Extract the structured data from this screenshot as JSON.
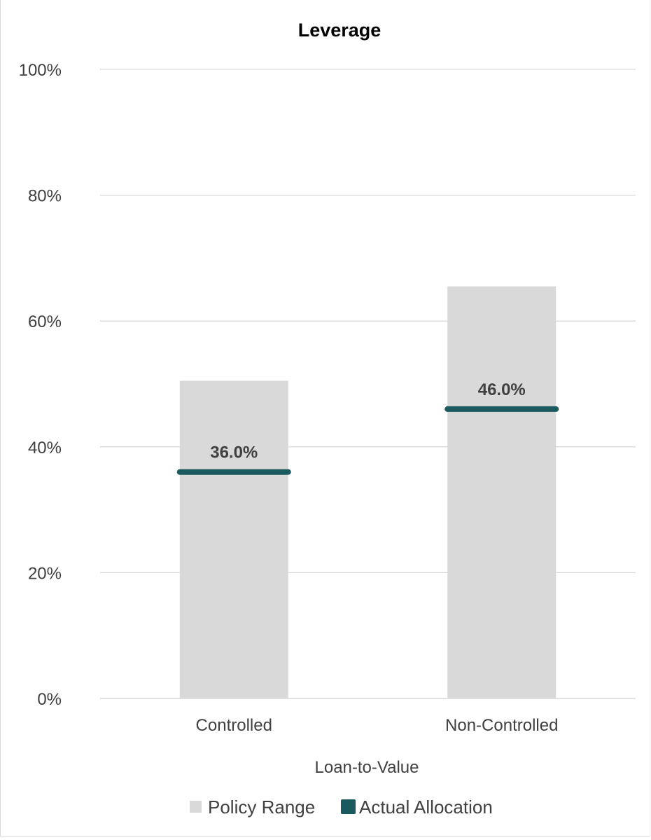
{
  "chart_data": {
    "type": "bar",
    "title": "Leverage",
    "xlabel": "Loan-to-Value",
    "ylabel": "",
    "ylim": [
      0,
      1.0
    ],
    "yticks": [
      0,
      0.2,
      0.4,
      0.6,
      0.8,
      1.0
    ],
    "ytick_labels": [
      "0%",
      "20%",
      "40%",
      "60%",
      "80%",
      "100%"
    ],
    "categories": [
      "Controlled",
      "Non-Controlled"
    ],
    "grid": true,
    "legend_position": "bottom",
    "series": [
      {
        "name": "Policy Range",
        "kind": "bar",
        "color": "#d9d9d9",
        "values": [
          0.505,
          0.655
        ]
      },
      {
        "name": "Actual Allocation",
        "kind": "marker-line",
        "color": "#1a5a5e",
        "values": [
          0.36,
          0.46
        ],
        "labels": [
          "36.0%",
          "46.0%"
        ]
      }
    ]
  }
}
